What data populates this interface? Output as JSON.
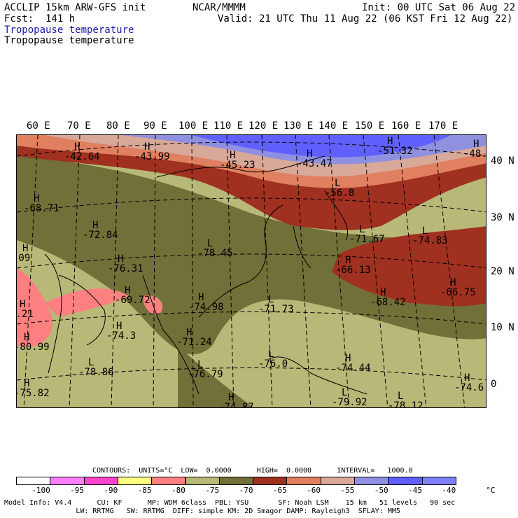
{
  "header": {
    "model": "ACCLIP 15km ARW-GFS init",
    "org": "NCAR/MMMM",
    "init": "Init: 00 UTC Sat 06 Aug 22",
    "fcst": "Fcst:  141 h",
    "valid": "Valid: 21 UTC Thu 11 Aug 22 (06 KST Fri 12 Aug 22)",
    "field1": "Tropopause temperature",
    "field2": "Tropopause temperature"
  },
  "axes": {
    "lon_labels": [
      "60 E",
      "70 E",
      "80 E",
      "90 E",
      "100 E",
      "110 E",
      "120 E",
      "130 E",
      "140 E",
      "150 E",
      "160 E",
      "170 E"
    ],
    "lat_labels": [
      "40 N",
      "30 N",
      "20 N",
      "10 N",
      "0"
    ]
  },
  "map_labels": [
    {
      "letter": "H",
      "value": "-42.64"
    },
    {
      "letter": "H",
      "value": "-43.99"
    },
    {
      "letter": "H",
      "value": "-45.23"
    },
    {
      "letter": "H",
      "value": "-43.47"
    },
    {
      "letter": "H",
      "value": "-51.32"
    },
    {
      "letter": "H",
      "value": "-48."
    },
    {
      "letter": "L",
      "value": "-56.8"
    },
    {
      "letter": "H",
      "value": "-68.71"
    },
    {
      "letter": "H",
      "value": "-72.84"
    },
    {
      "letter": "L",
      "value": "-78.45"
    },
    {
      "letter": "L",
      "value": "-71.67"
    },
    {
      "letter": "L",
      "value": "-74.83"
    },
    {
      "letter": "H",
      "value": ".09"
    },
    {
      "letter": "H",
      "value": "-76.31"
    },
    {
      "letter": "H",
      "value": "-66.13"
    },
    {
      "letter": "H",
      "value": "-66.75"
    },
    {
      "letter": "H",
      "value": "-69.72"
    },
    {
      "letter": "H",
      "value": "-74.98"
    },
    {
      "letter": "L",
      "value": "-71.73"
    },
    {
      "letter": "H",
      "value": "-68.42"
    },
    {
      "letter": "H",
      "value": "7.21"
    },
    {
      "letter": "H",
      "value": "-74.3"
    },
    {
      "letter": "H",
      "value": "-71.24"
    },
    {
      "letter": "H",
      "value": "-80.99"
    },
    {
      "letter": "L",
      "value": "-76.0"
    },
    {
      "letter": "H",
      "value": "-74.44"
    },
    {
      "letter": "L",
      "value": "-78.86"
    },
    {
      "letter": "L",
      "value": "-76.79"
    },
    {
      "letter": "H",
      "value": "-74.6"
    },
    {
      "letter": "H",
      "value": "-75.82"
    },
    {
      "letter": "H",
      "value": "-74.87"
    },
    {
      "letter": "L",
      "value": "-79.92"
    },
    {
      "letter": "L",
      "value": "-78.12"
    }
  ],
  "contours_line": "CONTOURS:  UNITS=°C  LOW=  0.0000      HIGH=  0.0000      INTERVAL=   1000.0",
  "legend": {
    "ticks": [
      "-100",
      "-95",
      "-90",
      "-85",
      "-80",
      "-75",
      "-70",
      "-65",
      "-60",
      "-55",
      "-50",
      "-45",
      "-40",
      "°C"
    ],
    "colors": [
      "#ffffff",
      "#ff80ff",
      "#ff44cc",
      "#ffff80",
      "#ff8080",
      "#b8b878",
      "#707038",
      "#a03020",
      "#e08060",
      "#d8a898",
      "#9090e0",
      "#6060ff",
      "#8080ff"
    ]
  },
  "footer": {
    "line1": "Model Info: V4.4      CU: KF      MP: WDM 6class  PBL: YSU       SF: Noah LSM    15 km   51 levels   90 sec",
    "line2": "                 LW: RRTMG   SW: RRTMG  DIFF: simple KM: 2D Smagor DAMP: Rayleigh3  SFLAY: MM5"
  },
  "colors": {
    "band_warm_red": "#a03020",
    "band_orange": "#e08060",
    "band_pink": "#d8a898",
    "band_lavender": "#9090e0",
    "band_blue": "#6060ff",
    "olive_dark": "#707038",
    "olive_light": "#b8b878",
    "salmon": "#ff8080"
  }
}
